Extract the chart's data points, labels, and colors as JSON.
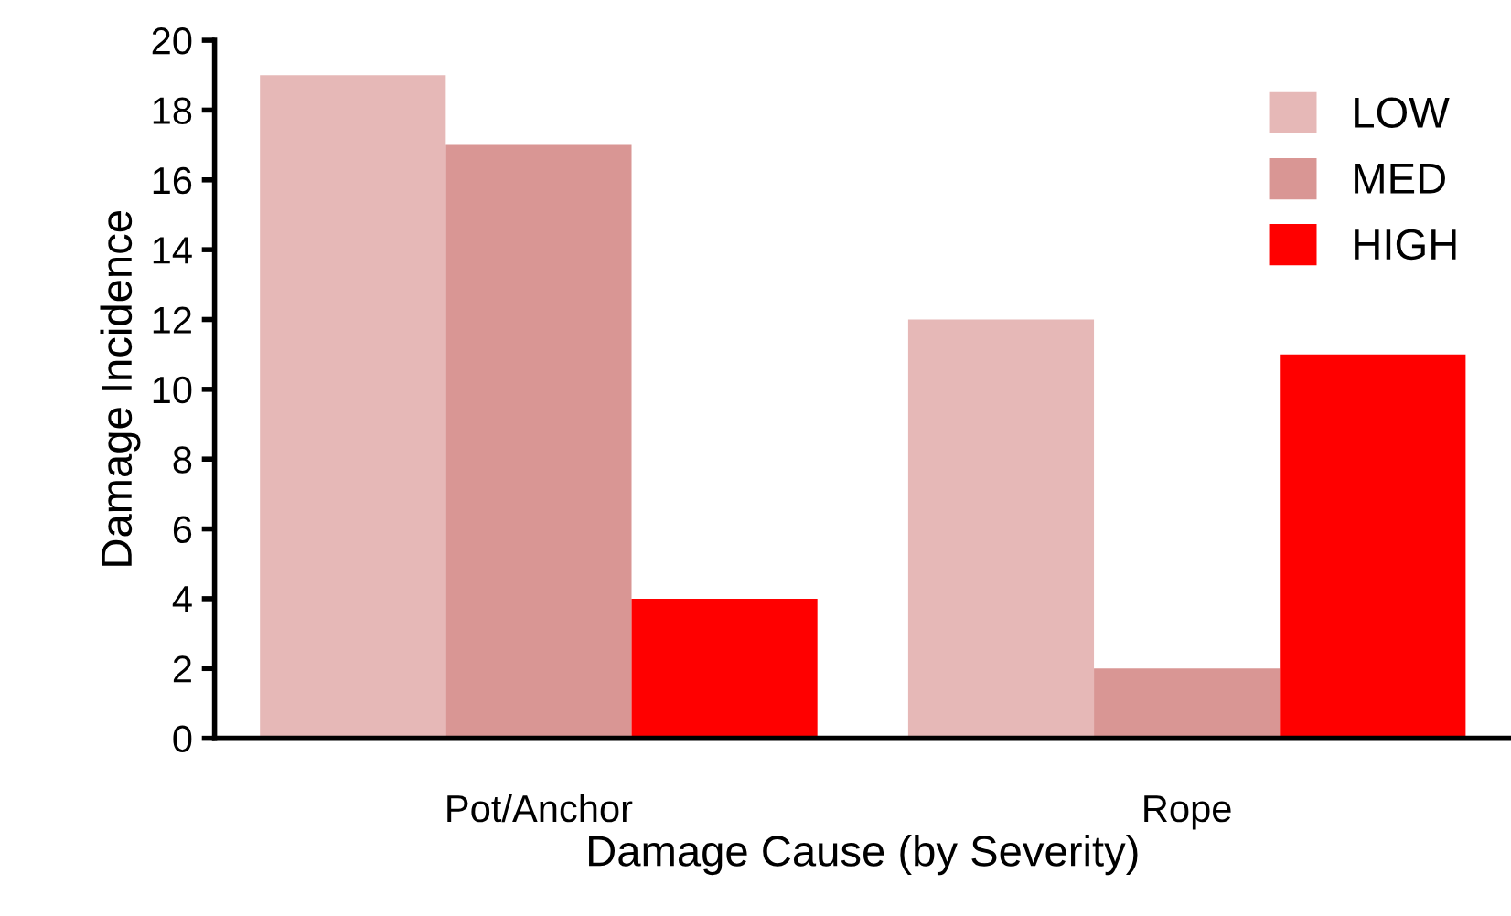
{
  "chart_data": {
    "type": "bar",
    "xlabel": "Damage Cause (by Severity)",
    "ylabel": "Damage Incidence",
    "categories": [
      "Pot/Anchor",
      "Rope"
    ],
    "series": [
      {
        "name": "LOW",
        "color": "#e6b8b7",
        "values": [
          19,
          12
        ]
      },
      {
        "name": "MED",
        "color": "#d99694",
        "values": [
          17,
          2
        ]
      },
      {
        "name": "HIGH",
        "color": "#ff0000",
        "values": [
          4,
          11
        ]
      }
    ],
    "ylim": [
      0,
      20
    ],
    "yticks": [
      0,
      2,
      4,
      6,
      8,
      10,
      12,
      14,
      16,
      18,
      20
    ],
    "grid": false,
    "legend": "top right"
  }
}
